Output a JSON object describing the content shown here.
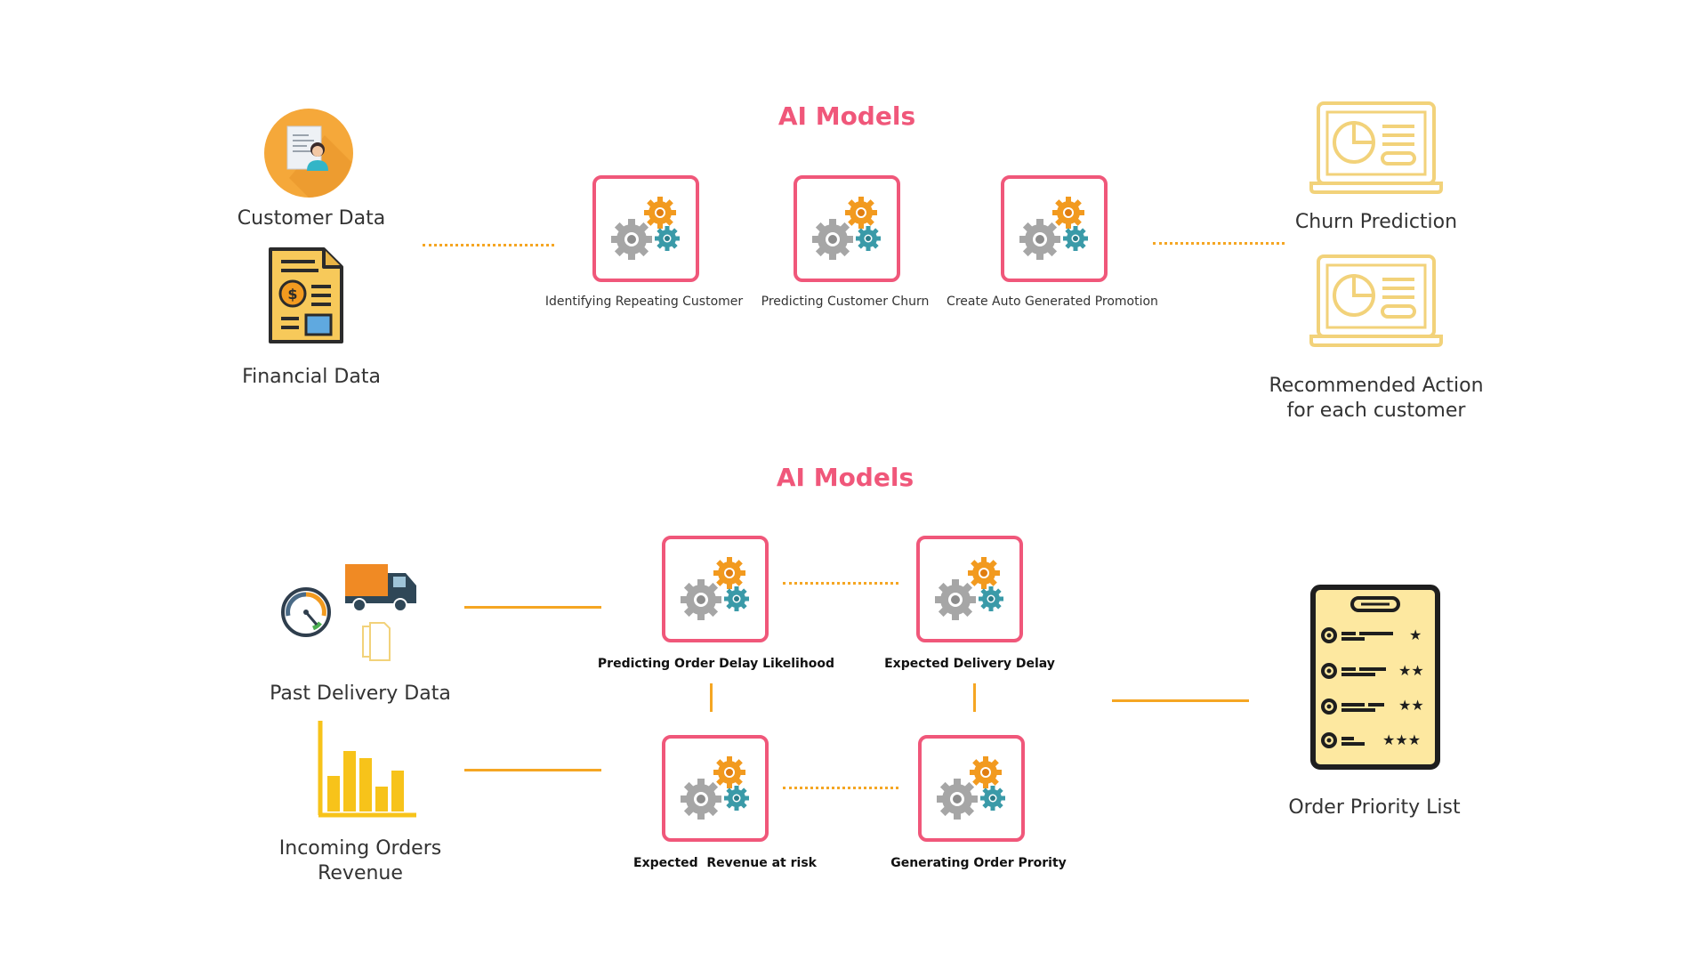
{
  "colors": {
    "accent": "#f0577a",
    "connector": "#f5a623",
    "text": "#333333"
  },
  "section1": {
    "title": "AI Models",
    "inputs": [
      {
        "label": "Customer Data",
        "icon": "customer-data-icon"
      },
      {
        "label": "Financial Data",
        "icon": "financial-document-icon"
      }
    ],
    "models": [
      {
        "label": "Identifying Repeating Customer",
        "icon": "gears-icon"
      },
      {
        "label": "Predicting Customer Churn",
        "icon": "gears-icon"
      },
      {
        "label": "Create Auto Generated Promotion",
        "icon": "gears-icon"
      }
    ],
    "outputs": [
      {
        "label": "Churn Prediction",
        "icon": "dashboard-laptop-icon"
      },
      {
        "label": "Recommended Action\nfor each customer",
        "icon": "dashboard-laptop-icon"
      }
    ]
  },
  "section2": {
    "title": "AI Models",
    "inputs": [
      {
        "label": "Past Delivery Data",
        "icon": "delivery-truck-icon"
      },
      {
        "label": "Incoming Orders Revenue",
        "icon": "bar-chart-icon"
      }
    ],
    "models": [
      {
        "label": "Predicting Order Delay Likelihood",
        "icon": "gears-icon"
      },
      {
        "label": "Expected Delivery Delay",
        "icon": "gears-icon"
      },
      {
        "label": "Expected  Revenue at risk",
        "icon": "gears-icon"
      },
      {
        "label": "Generating Order Prority",
        "icon": "gears-icon"
      }
    ],
    "output": {
      "label": "Order Priority List",
      "icon": "priority-list-icon"
    }
  }
}
